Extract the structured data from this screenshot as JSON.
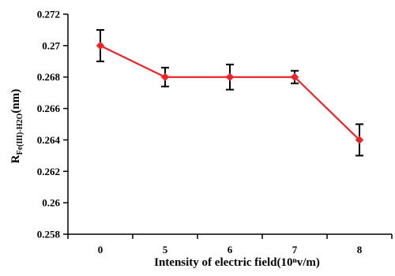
{
  "chart_data": {
    "type": "line",
    "title": "",
    "xlabel": "Intensity of electric field(10ⁿv/m)",
    "ylabel_main": "R",
    "ylabel_sub": "Fe(III)-H2O",
    "ylabel_unit": "(nm)",
    "categories": [
      "0",
      "5",
      "6",
      "7",
      "8"
    ],
    "series": [
      {
        "values": [
          0.27,
          0.268,
          0.268,
          0.268,
          0.264
        ],
        "error_upper": [
          0.271,
          0.2686,
          0.2688,
          0.2684,
          0.265
        ],
        "error_lower": [
          0.269,
          0.2674,
          0.2672,
          0.2676,
          0.263
        ],
        "color": "#e8262a",
        "marker": "diamond"
      }
    ],
    "ylim": [
      0.258,
      0.272
    ],
    "yticks": [
      "0.258",
      "0.26",
      "0.262",
      "0.264",
      "0.266",
      "0.268",
      "0.27",
      "0.272"
    ],
    "grid": false,
    "legend": "none"
  }
}
